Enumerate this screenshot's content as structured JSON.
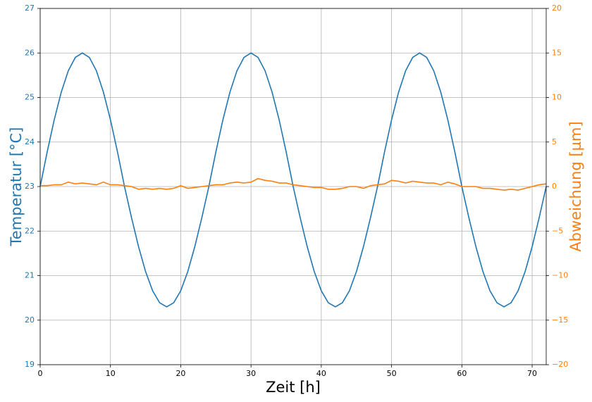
{
  "chart_data": {
    "type": "line",
    "xlabel": "Zeit [h]",
    "ylabel": "Temperatur [°C]",
    "y2label": "Abweichung [µm]",
    "x": [
      0,
      1,
      2,
      3,
      4,
      5,
      6,
      7,
      8,
      9,
      10,
      11,
      12,
      13,
      14,
      15,
      16,
      17,
      18,
      19,
      20,
      21,
      22,
      23,
      24,
      25,
      26,
      27,
      28,
      29,
      30,
      31,
      32,
      33,
      34,
      35,
      36,
      37,
      38,
      39,
      40,
      41,
      42,
      43,
      44,
      45,
      46,
      47,
      48,
      49,
      50,
      51,
      52,
      53,
      54,
      55,
      56,
      57,
      58,
      59,
      60,
      61,
      62,
      63,
      64,
      65,
      66,
      67,
      68,
      69,
      70,
      71,
      72
    ],
    "series": [
      {
        "name": "Temperatur",
        "color": "#1f77b4",
        "axis": "y",
        "values": [
          23,
          23.78,
          24.5,
          25.12,
          25.6,
          25.9,
          26,
          25.9,
          25.6,
          25.12,
          24.5,
          23.78,
          23,
          22.3,
          21.65,
          21.09,
          20.66,
          20.39,
          20.3,
          20.39,
          20.66,
          21.09,
          21.65,
          22.3,
          23,
          23.78,
          24.5,
          25.12,
          25.6,
          25.9,
          26,
          25.9,
          25.6,
          25.12,
          24.5,
          23.78,
          23,
          22.3,
          21.65,
          21.09,
          20.66,
          20.39,
          20.3,
          20.39,
          20.66,
          21.09,
          21.65,
          22.3,
          23,
          23.78,
          24.5,
          25.12,
          25.6,
          25.9,
          26,
          25.9,
          25.6,
          25.12,
          24.5,
          23.78,
          23,
          22.3,
          21.65,
          21.09,
          20.66,
          20.39,
          20.3,
          20.39,
          20.66,
          21.09,
          21.65,
          22.3,
          23
        ]
      },
      {
        "name": "Abweichung",
        "color": "#ff7f0e",
        "axis": "y2",
        "values": [
          0.1,
          0.1,
          0.2,
          0.2,
          0.5,
          0.3,
          0.4,
          0.3,
          0.2,
          0.5,
          0.2,
          0.2,
          0.1,
          0.0,
          -0.3,
          -0.2,
          -0.3,
          -0.2,
          -0.3,
          -0.2,
          0.1,
          -0.2,
          -0.1,
          0.0,
          0.1,
          0.2,
          0.2,
          0.4,
          0.5,
          0.4,
          0.5,
          0.9,
          0.7,
          0.6,
          0.4,
          0.4,
          0.2,
          0.1,
          0.0,
          -0.1,
          -0.1,
          -0.3,
          -0.3,
          -0.2,
          0.0,
          0.0,
          -0.2,
          0.1,
          0.2,
          0.3,
          0.7,
          0.6,
          0.4,
          0.6,
          0.5,
          0.4,
          0.4,
          0.2,
          0.5,
          0.3,
          0.0,
          0.0,
          0.0,
          -0.2,
          -0.2,
          -0.3,
          -0.4,
          -0.3,
          -0.4,
          -0.2,
          0.0,
          0.2,
          0.3
        ]
      }
    ],
    "xlim": [
      0,
      72
    ],
    "xticks": [
      0,
      10,
      20,
      30,
      40,
      50,
      60,
      70
    ],
    "ylim": [
      19,
      27
    ],
    "yticks": [
      19,
      20,
      21,
      22,
      23,
      24,
      25,
      26,
      27
    ],
    "y2lim": [
      -20,
      20
    ],
    "y2ticks": [
      {
        "value": -20,
        "label": "−20"
      },
      {
        "value": -15,
        "label": "−15"
      },
      {
        "value": -10,
        "label": "−10"
      },
      {
        "value": -5,
        "label": "−5"
      },
      0,
      5,
      10,
      15,
      20
    ],
    "grid": true
  }
}
